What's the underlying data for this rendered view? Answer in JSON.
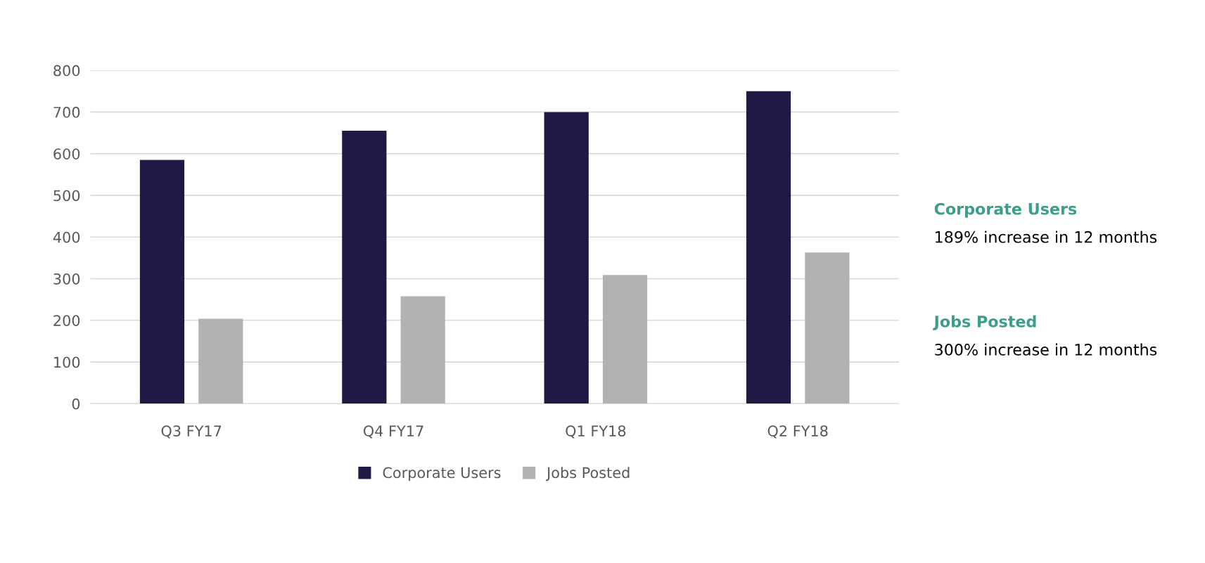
{
  "chart_data": {
    "type": "bar",
    "categories": [
      "Q3 FY17",
      "Q4 FY17",
      "Q1 FY18",
      "Q2 FY18"
    ],
    "series": [
      {
        "name": "Corporate Users",
        "color": "#1e1a45",
        "values": [
          585,
          655,
          700,
          750
        ]
      },
      {
        "name": "Jobs Posted",
        "color": "#b1b2b1",
        "values": [
          204,
          258,
          309,
          363
        ]
      }
    ],
    "ylim": [
      0,
      800
    ],
    "yticks": [
      0,
      100,
      200,
      300,
      400,
      500,
      600,
      700,
      800
    ],
    "grid": "y",
    "legend": "bottom",
    "annotations": [
      "Corporate Users",
      "189% increase in 12 months",
      "Jobs Posted",
      "300% increase in 12 months"
    ]
  }
}
